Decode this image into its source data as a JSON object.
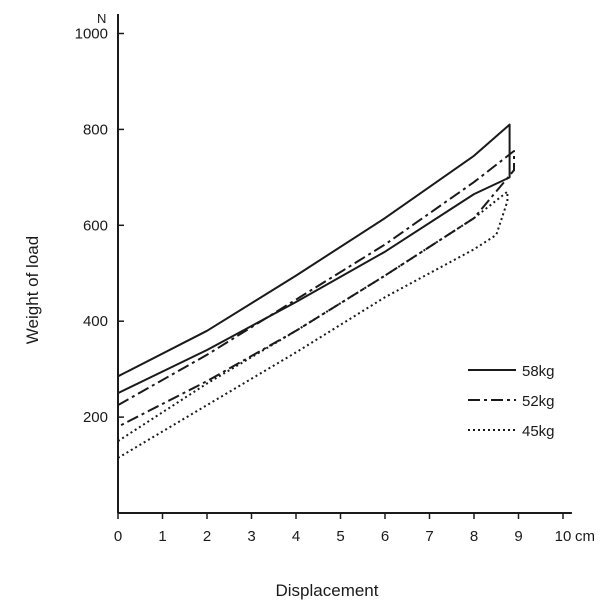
{
  "chart_data": {
    "type": "line",
    "title": "",
    "xlabel": "Displacement",
    "ylabel": "Weight of load",
    "x_unit": "cm",
    "y_unit": "N",
    "xlim": [
      0,
      10
    ],
    "ylim": [
      0,
      1000
    ],
    "x_ticks": [
      "0",
      "1",
      "2",
      "3",
      "4",
      "5",
      "6",
      "7",
      "8",
      "9",
      "10"
    ],
    "y_ticks": [
      "200",
      "400",
      "600",
      "800",
      "1000"
    ],
    "y_tick_values": [
      200,
      400,
      600,
      800,
      1000
    ],
    "grid": false,
    "legend_position": "right",
    "series": [
      {
        "name": "58kg",
        "style": "solid",
        "color": "#1a1a1a",
        "x": [
          0,
          2,
          4,
          6,
          8,
          8.8,
          8.8,
          8,
          6,
          4,
          2,
          0
        ],
        "y": [
          285,
          380,
          495,
          615,
          745,
          810,
          700,
          665,
          545,
          440,
          340,
          250
        ]
      },
      {
        "name": "52kg",
        "style": "dashdot",
        "color": "#1a1a1a",
        "x": [
          0,
          2,
          4,
          6,
          8,
          8.9,
          8.9,
          8,
          6,
          4,
          2,
          0
        ],
        "y": [
          225,
          330,
          445,
          560,
          690,
          755,
          715,
          615,
          495,
          380,
          275,
          180
        ]
      },
      {
        "name": "45kg",
        "style": "dotted",
        "color": "#1a1a1a",
        "x": [
          0,
          2,
          4,
          6,
          8,
          8.75,
          8.75,
          8.5,
          8,
          6,
          4,
          2,
          0
        ],
        "y": [
          150,
          270,
          380,
          495,
          615,
          670,
          650,
          580,
          550,
          450,
          335,
          225,
          115
        ]
      }
    ]
  }
}
